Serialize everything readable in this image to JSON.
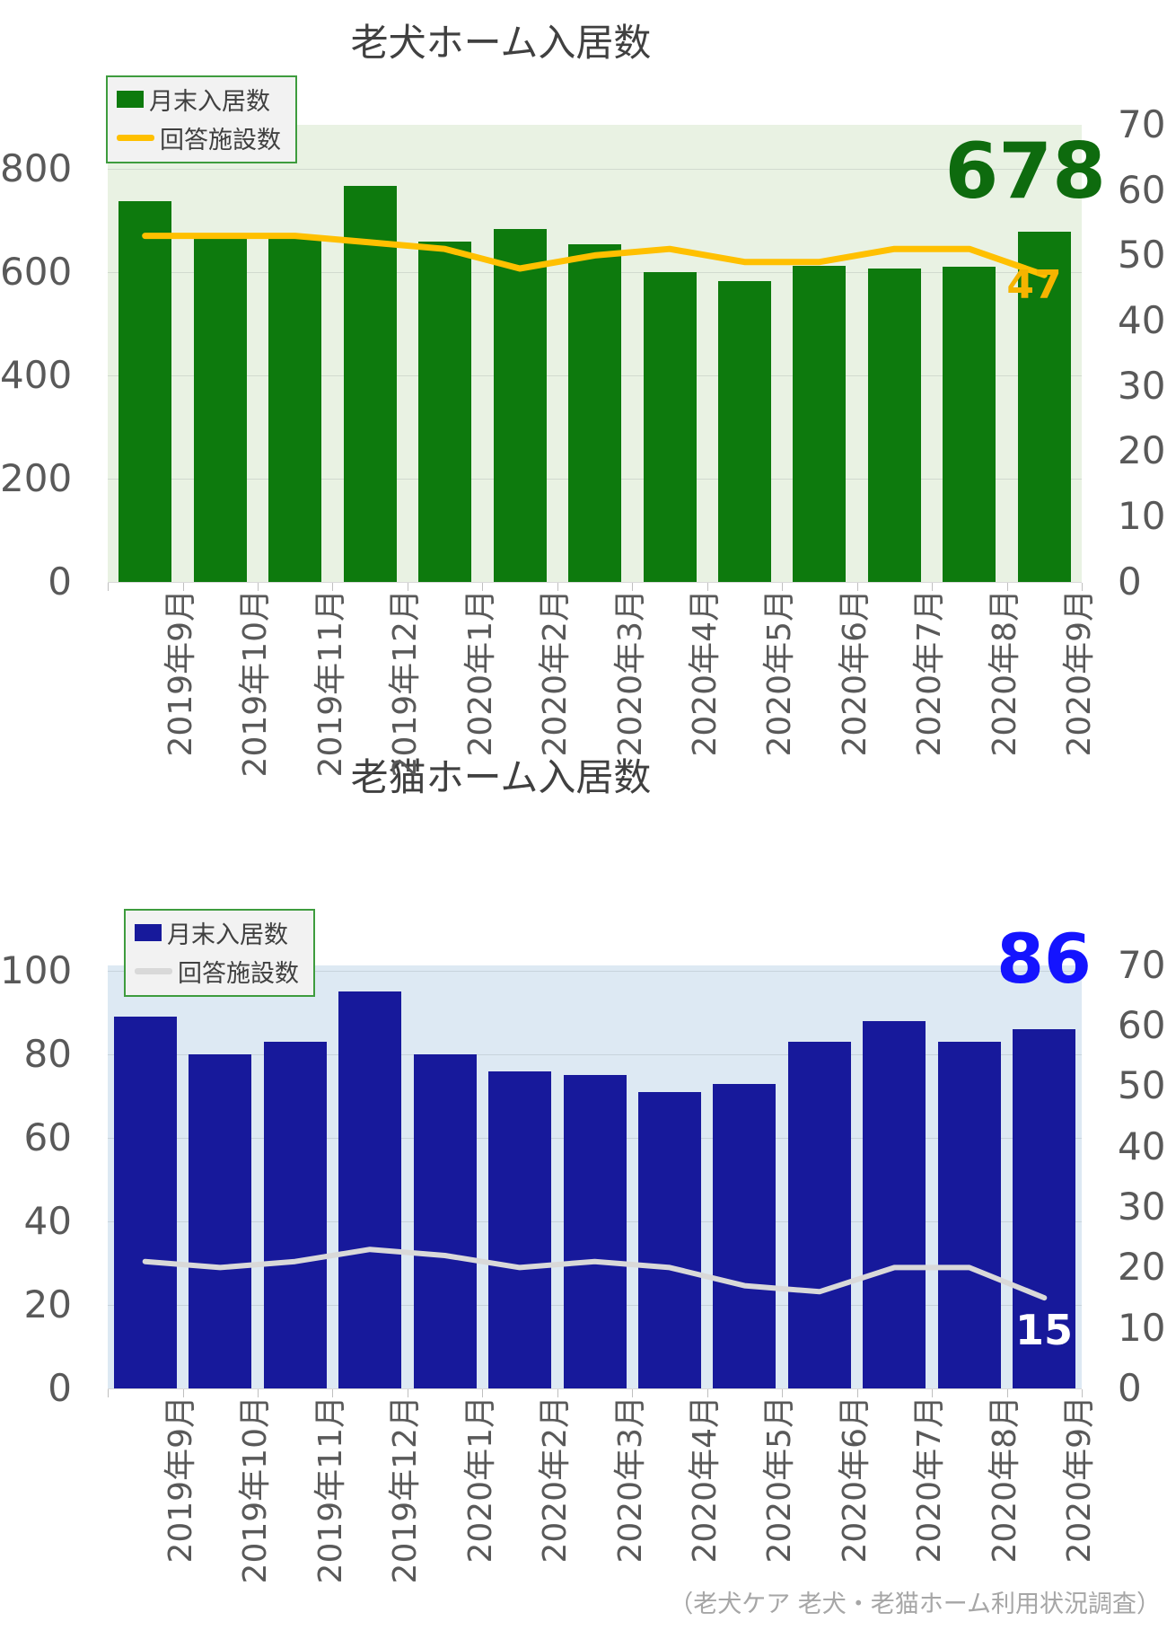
{
  "page": {
    "caption": "（老犬ケア 老犬・老猫ホーム利用状況調査）",
    "palette": {
      "axis_text": "#595959",
      "title_text": "#404040",
      "caption_text": "#a6a6a6"
    }
  },
  "chart_data": [
    {
      "type": "bar+line",
      "title": "老犬ホーム入居数",
      "legend_position": "top-left",
      "grid": "on",
      "plot_bg": "#e9f2e3",
      "categories": [
        "2019年9月",
        "2019年10月",
        "2019年11月",
        "2019年12月",
        "2020年1月",
        "2020年2月",
        "2020年3月",
        "2020年4月",
        "2020年5月",
        "2020年6月",
        "2020年7月",
        "2020年8月",
        "2020年9月"
      ],
      "series": [
        {
          "name": "月末入居数",
          "type": "bar",
          "axis": "left",
          "color": "#0d7a0d",
          "values": [
            738,
            667,
            668,
            766,
            659,
            684,
            654,
            600,
            583,
            612,
            607,
            610,
            678
          ]
        },
        {
          "name": "回答施設数",
          "type": "line",
          "axis": "right",
          "color": "#ffc000",
          "values": [
            53,
            53,
            53,
            52,
            51,
            48,
            50,
            51,
            49,
            49,
            51,
            51,
            47
          ]
        }
      ],
      "left_axis": {
        "ticks": [
          0,
          200,
          400,
          600,
          800
        ],
        "range": [
          0,
          885
        ]
      },
      "right_axis": {
        "ticks": [
          0,
          10,
          20,
          30,
          40,
          50,
          60,
          70
        ],
        "range": [
          0,
          70
        ]
      },
      "annotations": [
        {
          "text": "678",
          "refers_to": "last bar value",
          "color": "#0e6b0e"
        },
        {
          "text": "47",
          "refers_to": "last line value",
          "color": "#f5b400"
        }
      ]
    },
    {
      "type": "bar+line",
      "title": "老猫ホーム入居数",
      "legend_position": "top-left",
      "grid": "on",
      "plot_bg": "#dde9f3",
      "categories": [
        "2019年9月",
        "2019年10月",
        "2019年11月",
        "2019年12月",
        "2020年1月",
        "2020年2月",
        "2020年3月",
        "2020年4月",
        "2020年5月",
        "2020年6月",
        "2020年7月",
        "2020年8月",
        "2020年9月"
      ],
      "series": [
        {
          "name": "月末入居数",
          "type": "bar",
          "axis": "left",
          "color": "#17199b",
          "values": [
            89,
            80,
            83,
            95,
            80,
            76,
            75,
            71,
            73,
            83,
            88,
            83,
            86
          ]
        },
        {
          "name": "回答施設数",
          "type": "line",
          "axis": "right",
          "color": "#d9d9d9",
          "values": [
            21,
            20,
            21,
            23,
            22,
            20,
            21,
            20,
            17,
            16,
            20,
            20,
            15
          ]
        }
      ],
      "left_axis": {
        "ticks": [
          0,
          20,
          40,
          60,
          80,
          100
        ],
        "range": [
          0,
          101.3
        ]
      },
      "right_axis": {
        "ticks": [
          0,
          10,
          20,
          30,
          40,
          50,
          60,
          70
        ],
        "range": [
          0,
          70
        ]
      },
      "annotations": [
        {
          "text": "86",
          "refers_to": "last bar value",
          "color": "#1414ff"
        },
        {
          "text": "15",
          "refers_to": "last line value",
          "color": "#ffffff"
        }
      ]
    }
  ]
}
